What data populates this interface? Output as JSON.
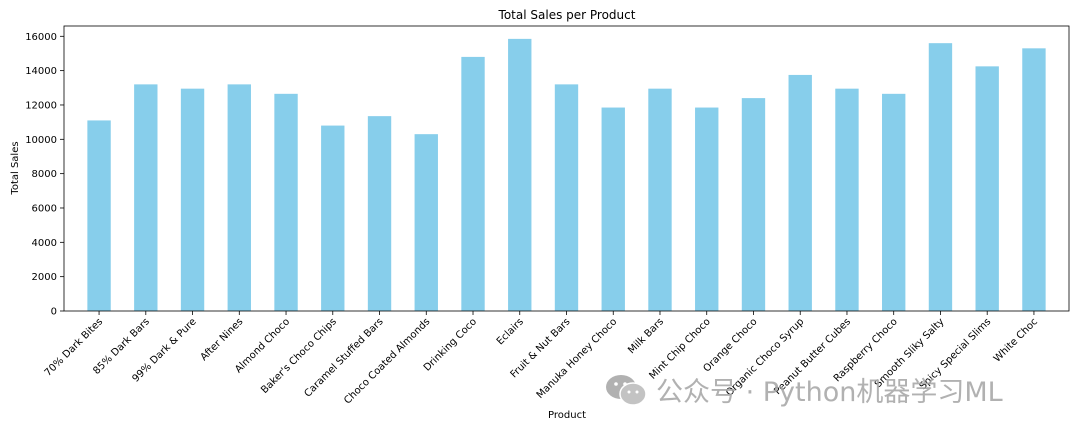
{
  "chart_data": {
    "type": "bar",
    "title": "Total Sales per Product",
    "xlabel": "Product",
    "ylabel": "Total Sales",
    "ylim": [
      0,
      16600
    ],
    "yticks": [
      0,
      2000,
      4000,
      6000,
      8000,
      10000,
      12000,
      14000,
      16000
    ],
    "bar_color": "#87ceeb",
    "categories": [
      "70% Dark Bites",
      "85% Dark Bars",
      "99% Dark & Pure",
      "After Nines",
      "Almond Choco",
      "Baker's Choco Chips",
      "Caramel Stuffed Bars",
      "Choco Coated Almonds",
      "Drinking Coco",
      "Eclairs",
      "Fruit & Nut Bars",
      "Manuka Honey Choco",
      "Milk Bars",
      "Mint Chip Choco",
      "Orange Choco",
      "Organic Choco Syrup",
      "Peanut Butter Cubes",
      "Raspberry Choco",
      "Smooth Sliky Salty",
      "Spicy Special Slims",
      "White Choc"
    ],
    "values": [
      11100,
      13200,
      12950,
      13200,
      12650,
      10800,
      11350,
      10300,
      14800,
      15850,
      13200,
      11850,
      12950,
      11850,
      12400,
      13750,
      12950,
      12650,
      15600,
      14250,
      15300
    ],
    "grid": false,
    "legend": "none"
  },
  "watermark": {
    "text": "公众号 · Python机器学习ML",
    "icon": "wechat-icon"
  }
}
